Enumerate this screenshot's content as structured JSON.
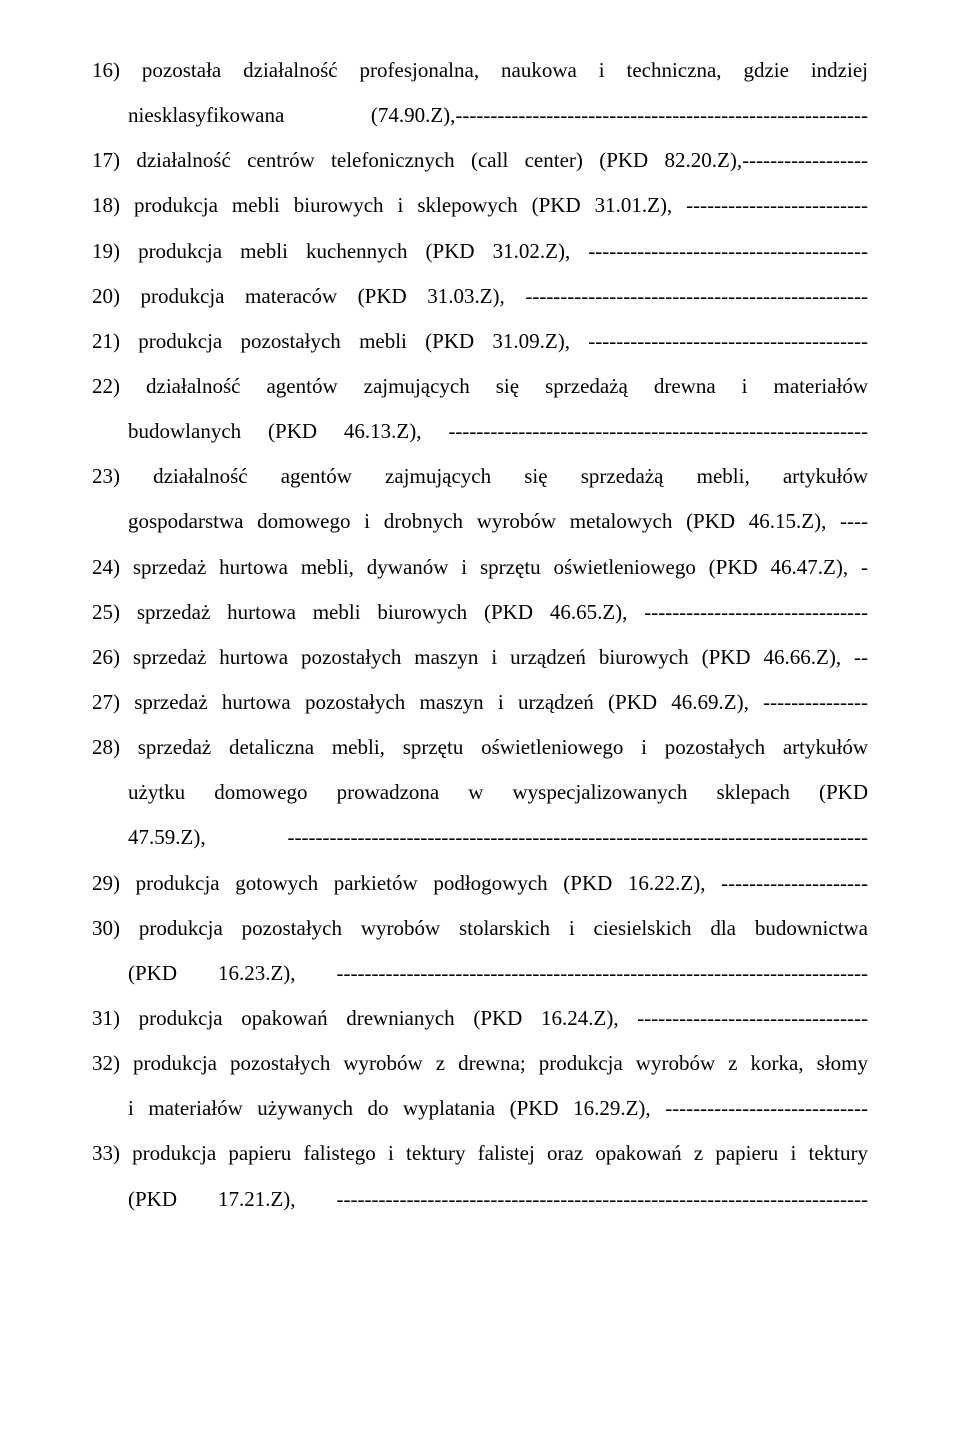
{
  "lines": [
    {
      "cls": "item",
      "text": "16) pozostała działalność profesjonalna, naukowa i techniczna, gdzie indziej"
    },
    {
      "cls": "sub",
      "text": "niesklasyfikowana (74.90.Z),-----------------------------------------------------------"
    },
    {
      "cls": "item",
      "text": "17) działalność centrów telefonicznych (call center) (PKD 82.20.Z),------------------"
    },
    {
      "cls": "item",
      "text": "18) produkcja mebli biurowych i sklepowych (PKD 31.01.Z), --------------------------"
    },
    {
      "cls": "item",
      "text": "19) produkcja mebli kuchennych (PKD 31.02.Z), ----------------------------------------"
    },
    {
      "cls": "item",
      "text": "20) produkcja materaców (PKD 31.03.Z), -------------------------------------------------"
    },
    {
      "cls": "item",
      "text": "21) produkcja pozostałych mebli (PKD 31.09.Z), ----------------------------------------"
    },
    {
      "cls": "item",
      "text": "22) działalność   agentów  zajmujących  się  sprzedażą  drewna  i  materiałów"
    },
    {
      "cls": "sub",
      "text": "budowlanych (PKD 46.13.Z), ------------------------------------------------------------"
    },
    {
      "cls": "item",
      "text": "23) działalność   agentów   zajmujących   się   sprzedażą   mebli,   artykułów"
    },
    {
      "cls": "sub",
      "text": "gospodarstwa domowego i drobnych wyrobów metalowych (PKD 46.15.Z), ----"
    },
    {
      "cls": "item",
      "text": "24) sprzedaż hurtowa mebli, dywanów i sprzętu oświetleniowego (PKD 46.47.Z), -"
    },
    {
      "cls": "item",
      "text": "25) sprzedaż hurtowa mebli biurowych (PKD 46.65.Z), --------------------------------"
    },
    {
      "cls": "item",
      "text": "26) sprzedaż hurtowa pozostałych maszyn i urządzeń biurowych (PKD 46.66.Z), --"
    },
    {
      "cls": "item",
      "text": "27) sprzedaż hurtowa pozostałych maszyn i urządzeń (PKD 46.69.Z), ---------------"
    },
    {
      "cls": "item",
      "text": "28) sprzedaż detaliczna mebli, sprzętu oświetleniowego i pozostałych artykułów"
    },
    {
      "cls": "sub",
      "text": "użytku  domowego  prowadzona  w  wyspecjalizowanych  sklepach  (PKD"
    },
    {
      "cls": "sub",
      "text": "47.59.Z), -----------------------------------------------------------------------------------"
    },
    {
      "cls": "item",
      "text": "29) produkcja gotowych parkietów podłogowych (PKD 16.22.Z), ---------------------"
    },
    {
      "cls": "item",
      "text": "30) produkcja pozostałych wyrobów stolarskich i ciesielskich dla budownictwa"
    },
    {
      "cls": "sub",
      "text": "(PKD 16.23.Z), ----------------------------------------------------------------------------"
    },
    {
      "cls": "item",
      "text": "31) produkcja opakowań drewnianych (PKD 16.24.Z), ---------------------------------"
    },
    {
      "cls": "item",
      "text": "32) produkcja pozostałych wyrobów z drewna; produkcja wyrobów z korka, słomy"
    },
    {
      "cls": "sub",
      "text": "i materiałów używanych do wyplatania (PKD 16.29.Z), -----------------------------"
    },
    {
      "cls": "item",
      "text": "33) produkcja papieru falistego i tektury falistej oraz opakowań z papieru i tektury"
    },
    {
      "cls": "sub",
      "text": "(PKD 17.21.Z), ----------------------------------------------------------------------------"
    }
  ]
}
